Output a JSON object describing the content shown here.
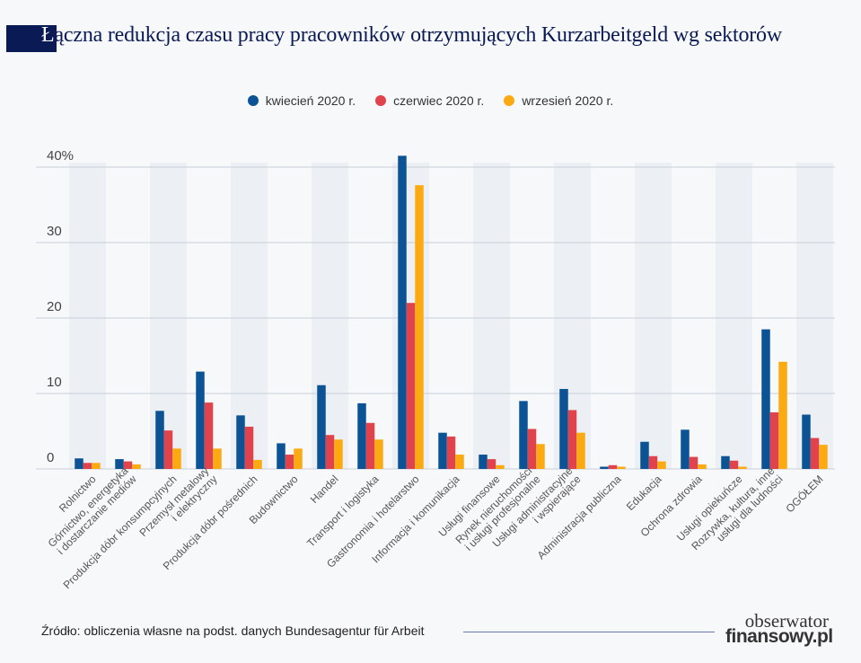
{
  "title": "Łączna redukcja czasu pracy pracowników otrzymujących Kurzarbeitgeld wg sektorów",
  "source": "Źródło: obliczenia własne na podst. danych Bundesagentur für Arbeit",
  "logo": {
    "line1": "obserwator",
    "line2": "finansowy.pl"
  },
  "colors": {
    "title": "#0a1a54",
    "kwiecien": "#0b5394",
    "czerwiec": "#e0434b",
    "wrzesien": "#fbaa12"
  },
  "chart_data": {
    "type": "bar",
    "title": "Łączna redukcja czasu pracy pracowników otrzymujących Kurzarbeitgeld wg sektorów",
    "ylabel": "",
    "xlabel": "",
    "y_unit": "%",
    "ylim": [
      0,
      40
    ],
    "yticks": [
      0,
      10,
      20,
      30,
      40
    ],
    "ytick_labels": [
      "0",
      "10",
      "20",
      "30",
      "40%"
    ],
    "grid": true,
    "legend_placement": "top-center",
    "categories": [
      "Rolnictwo",
      "Górnictwo, energetyka\ni dostarczanie mediów",
      "Produkcja dóbr konsumpcyjnych",
      "Przemysł metalowy\ni elektryczny",
      "Produkcja dóbr pośrednich",
      "Budownictwo",
      "Handel",
      "Transport i logistyka",
      "Gastronomia i hotelarstwo",
      "Informacja i komunikacja",
      "Usługi finansowe",
      "Rynek nieruchomości\ni usługi profesjonalne",
      "Usługi administracyjne\ni wspierające",
      "Administracja publiczna",
      "Edukacja",
      "Ochrona zdrowia",
      "Usługi opiekuńcze",
      "Rozrywka, kultura, inne\nusługi dla ludności",
      "OGÓŁEM"
    ],
    "series": [
      {
        "name": "kwiecień 2020 r.",
        "color": "#0b5394",
        "values": [
          1.4,
          1.3,
          7.7,
          12.9,
          7.1,
          3.4,
          11.1,
          8.7,
          41.5,
          4.8,
          1.9,
          9.0,
          10.6,
          0.3,
          3.6,
          5.2,
          1.7,
          18.5,
          7.2
        ]
      },
      {
        "name": "czerwiec 2020 r.",
        "color": "#e0434b",
        "values": [
          0.8,
          1.0,
          5.1,
          8.8,
          5.6,
          1.9,
          4.5,
          6.1,
          22.0,
          4.3,
          1.3,
          5.3,
          7.8,
          0.5,
          1.7,
          1.6,
          1.1,
          7.5,
          4.1
        ]
      },
      {
        "name": "wrzesień 2020 r.",
        "color": "#fbaa12",
        "values": [
          0.8,
          0.6,
          2.7,
          2.7,
          1.2,
          2.7,
          3.9,
          3.9,
          37.6,
          1.9,
          0.5,
          3.3,
          4.8,
          0.3,
          1.0,
          0.6,
          0.3,
          14.2,
          3.2
        ]
      }
    ]
  }
}
